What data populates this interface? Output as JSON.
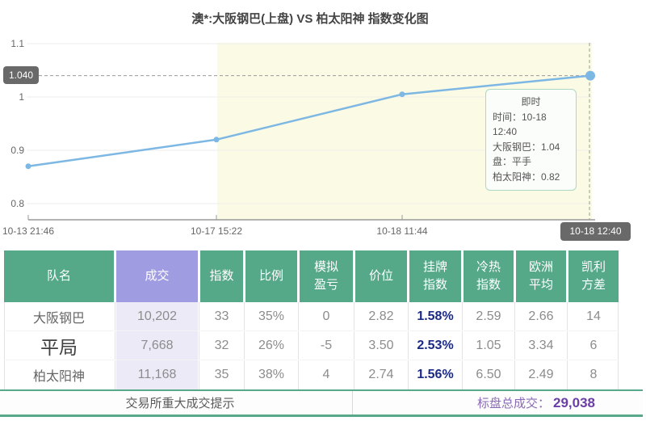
{
  "chart": {
    "title": "澳*:大阪钢巴(上盘) VS 柏太阳神 指数变化图",
    "current_value_badge": "1.040",
    "current_time_badge": "10-18 12:40",
    "tooltip": {
      "title": "即时",
      "lines": [
        "时间：10-18 12:40",
        "大阪钢巴：1.04",
        "盘：平手",
        "柏太阳神：0.82"
      ]
    }
  },
  "chart_data": {
    "type": "line",
    "title": "澳*:大阪钢巴(上盘) VS 柏太阳神 指数变化图",
    "x": [
      "10-13 21:46",
      "10-17 15:22",
      "10-18 11:44",
      "10-18 12:40"
    ],
    "series": [
      {
        "name": "大阪钢巴指数",
        "values": [
          0.87,
          0.92,
          1.005,
          1.04
        ]
      }
    ],
    "ylim": [
      0.8,
      1.1
    ],
    "y_ticks": [
      {
        "label": "1.1",
        "value": 1.1
      },
      {
        "label": "1",
        "value": 1.0
      },
      {
        "label": "0.9",
        "value": 0.9
      },
      {
        "label": "0.8",
        "value": 0.8
      }
    ],
    "marked_value": 1.04,
    "highlight_from_index": 1,
    "grid": true,
    "legend": "none"
  },
  "table": {
    "columns": [
      {
        "key": "team",
        "label": "队名"
      },
      {
        "key": "volume",
        "label": "成交",
        "accent": true
      },
      {
        "key": "index",
        "label": "指数"
      },
      {
        "key": "ratio",
        "label": "比例"
      },
      {
        "key": "sim_pl",
        "label": "模拟\n盈亏"
      },
      {
        "key": "price",
        "label": "价位"
      },
      {
        "key": "listed_index",
        "label": "挂牌\n指数"
      },
      {
        "key": "hot_cold",
        "label": "冷热\n指数"
      },
      {
        "key": "euro_avg",
        "label": "欧洲\n平均"
      },
      {
        "key": "kelly_var",
        "label": "凯利\n方差"
      }
    ],
    "rows": [
      {
        "team": "大阪钢巴",
        "volume": "10,202",
        "index": "33",
        "ratio": "35%",
        "sim_pl": "0",
        "price": "2.82",
        "listed_index": "1.58%",
        "hot_cold": "2.59",
        "euro_avg": "2.66",
        "kelly_var": "14",
        "big_team": false
      },
      {
        "team": "平局",
        "volume": "7,668",
        "index": "32",
        "ratio": "26%",
        "sim_pl": "-5",
        "price": "3.50",
        "listed_index": "2.53%",
        "hot_cold": "1.05",
        "euro_avg": "3.34",
        "kelly_var": "6",
        "big_team": true
      },
      {
        "team": "柏太阳神",
        "volume": "11,168",
        "index": "35",
        "ratio": "38%",
        "sim_pl": "4",
        "price": "2.74",
        "listed_index": "1.56%",
        "hot_cold": "6.50",
        "euro_avg": "2.49",
        "kelly_var": "8",
        "big_team": false
      }
    ]
  },
  "footer": {
    "left_label": "交易所重大成交提示",
    "total_label": "标盘总成交：",
    "total_value": "29,038"
  },
  "colors": {
    "header_green": "#55a888",
    "header_purple": "#a09ce2",
    "volume_column_bg": "#edeaf8",
    "listed_index_text": "#1b2a84",
    "teal_line": "#57a98a",
    "total_label_purple": "#8a6ab5",
    "total_value_purple": "#6a3fa5",
    "line_blue": "#7db7e3",
    "highlight_yellow": "#fbfae4",
    "badge_gray": "#696969",
    "tooltip_border": "#abd9c4",
    "axis_gray": "#9a9a9a"
  }
}
